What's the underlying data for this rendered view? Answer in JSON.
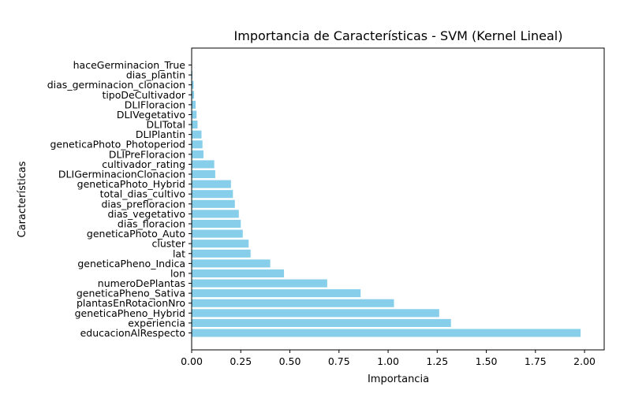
{
  "chart_data": {
    "type": "bar",
    "orientation": "horizontal",
    "title": "Importancia de Características - SVM (Kernel Lineal)",
    "xlabel": "Importancia",
    "ylabel": "Características",
    "xlim": [
      0,
      2.1
    ],
    "xticks": [
      "0.00",
      "0.25",
      "0.50",
      "0.75",
      "1.00",
      "1.25",
      "1.50",
      "1.75",
      "2.00"
    ],
    "xtick_values": [
      0,
      0.25,
      0.5,
      0.75,
      1.0,
      1.25,
      1.5,
      1.75,
      2.0
    ],
    "bar_color": "#87ceeb",
    "grid": false,
    "categories": [
      "educacionAlRespecto",
      "experiencia",
      "geneticaPheno_Hybrid",
      "plantasEnRotacionNro",
      "geneticaPheno_Sativa",
      "numeroDePlantas",
      "lon",
      "geneticaPheno_Indica",
      "lat",
      "cluster",
      "geneticaPhoto_Auto",
      "dias_floracion",
      "dias_vegetativo",
      "dias_prefloracion",
      "total_dias_cultivo",
      "geneticaPhoto_Hybrid",
      "DLIGerminacionClonacion",
      "cultivador_rating",
      "DLIPreFloracion",
      "geneticaPhoto_Photoperiod",
      "DLIPlantin",
      "DLITotal",
      "DLIVegetativo",
      "DLIFloracion",
      "tipoDeCultivador",
      "dias_germinacion_clonacion",
      "dias_plantin",
      "haceGerminacion_True"
    ],
    "values": [
      1.98,
      1.32,
      1.26,
      1.03,
      0.86,
      0.69,
      0.47,
      0.4,
      0.3,
      0.29,
      0.26,
      0.25,
      0.24,
      0.22,
      0.21,
      0.2,
      0.12,
      0.115,
      0.06,
      0.055,
      0.05,
      0.03,
      0.025,
      0.02,
      0.012,
      0.01,
      0.004,
      0.002
    ]
  }
}
